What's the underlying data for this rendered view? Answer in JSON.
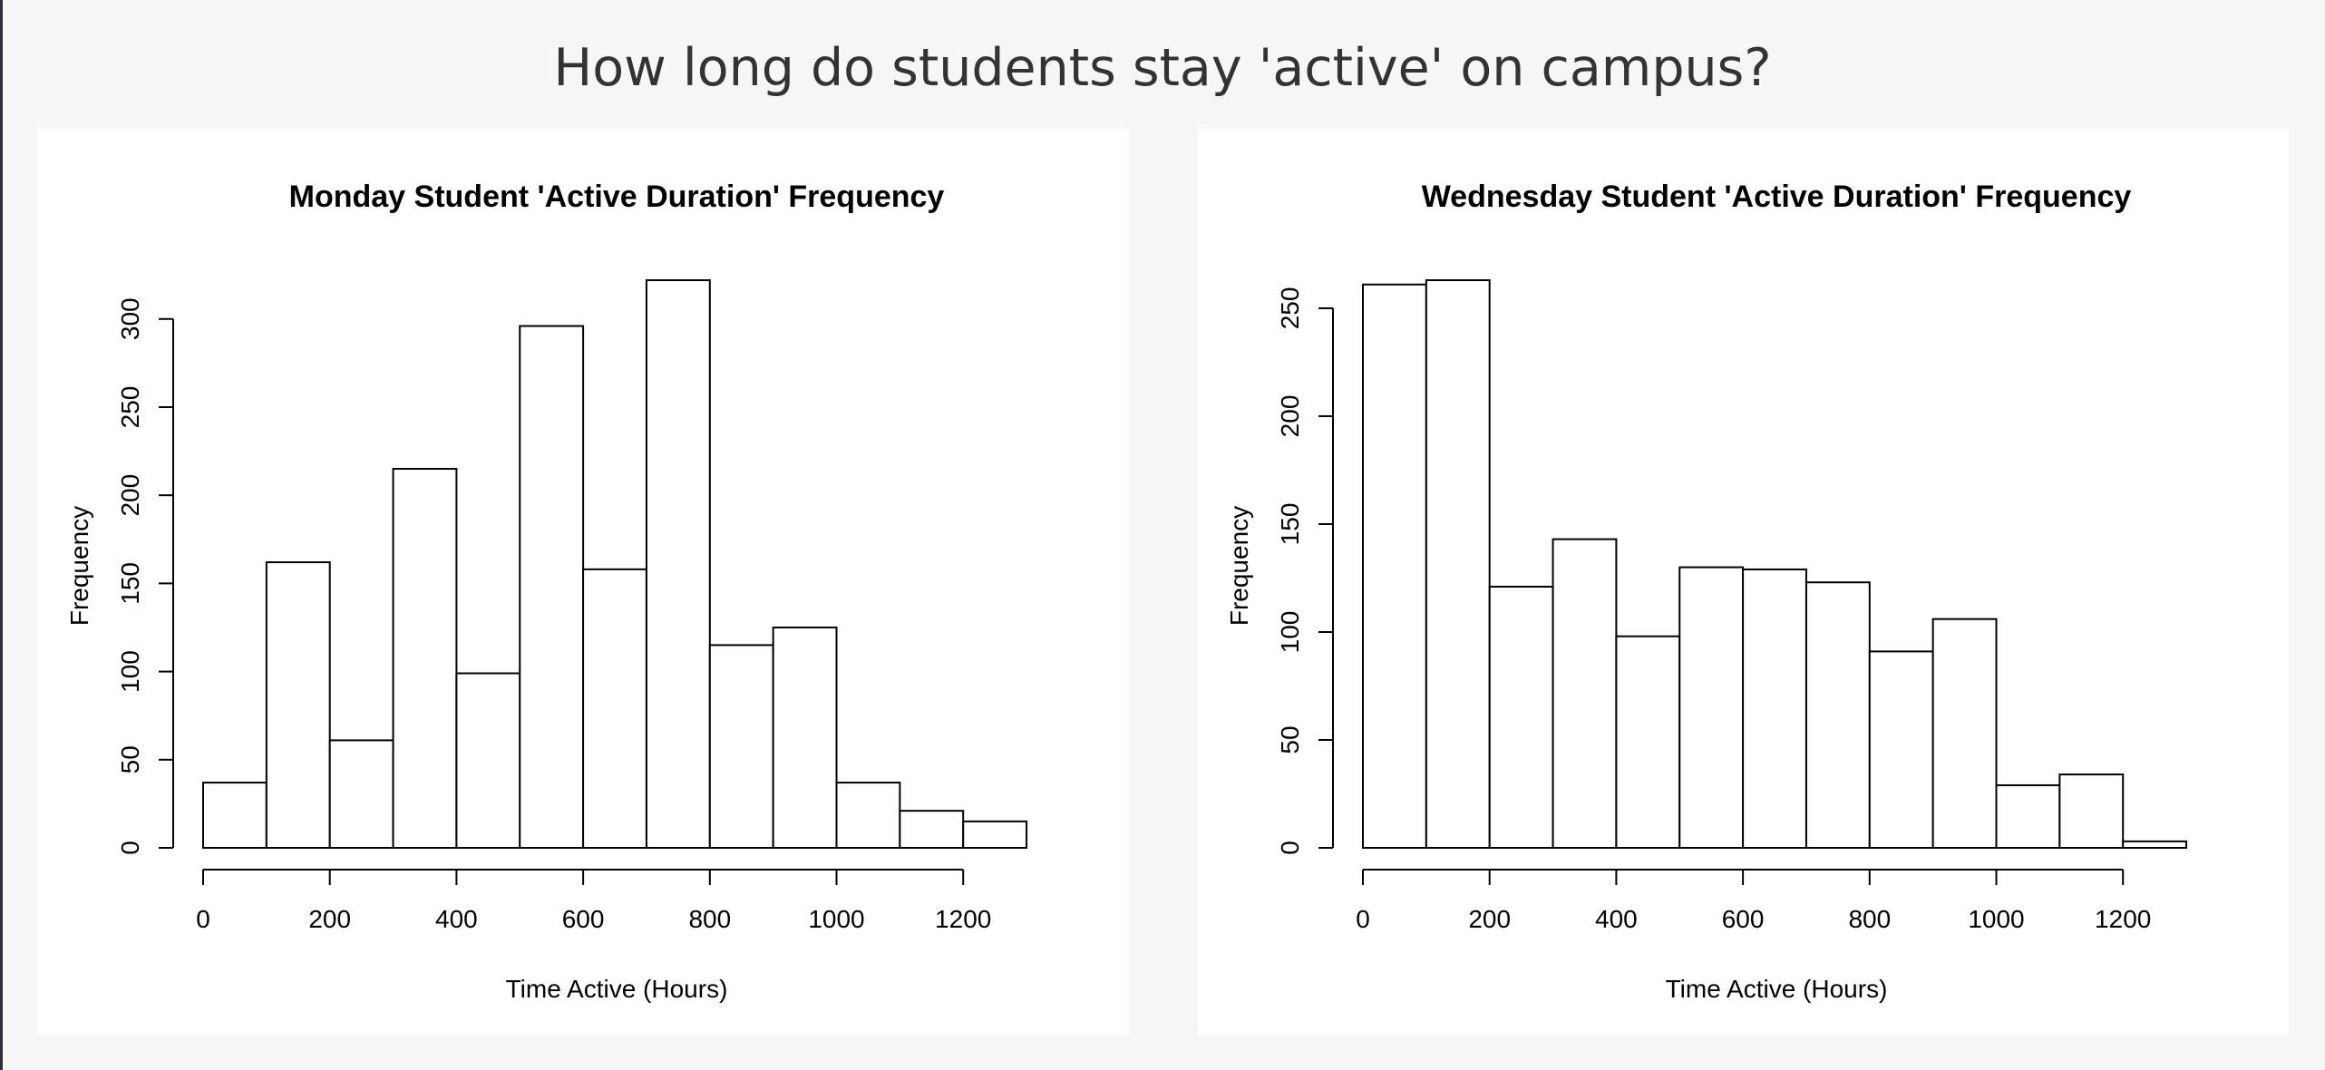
{
  "page": {
    "title": "How long do students stay 'active' on campus?"
  },
  "chart_data": [
    {
      "type": "bar",
      "title": "Monday Student 'Active Duration' Frequency",
      "xlabel": "Time Active (Hours)",
      "ylabel": "Frequency",
      "bin_width": 100,
      "bins_start": [
        0,
        100,
        200,
        300,
        400,
        500,
        600,
        700,
        800,
        900,
        1000,
        1100,
        1200
      ],
      "values": [
        37,
        162,
        61,
        215,
        99,
        296,
        158,
        322,
        115,
        125,
        37,
        21,
        15
      ],
      "xlim": [
        0,
        1300
      ],
      "ylim": [
        0,
        322
      ],
      "x_ticks": [
        0,
        200,
        400,
        600,
        800,
        1000,
        1200
      ],
      "y_ticks": [
        0,
        50,
        100,
        150,
        200,
        250,
        300
      ],
      "grid": false
    },
    {
      "type": "bar",
      "title": "Wednesday Student 'Active Duration' Frequency",
      "xlabel": "Time Active (Hours)",
      "ylabel": "Frequency",
      "bin_width": 100,
      "bins_start": [
        0,
        100,
        200,
        300,
        400,
        500,
        600,
        700,
        800,
        900,
        1000,
        1100,
        1200
      ],
      "values": [
        261,
        263,
        121,
        143,
        98,
        130,
        129,
        123,
        91,
        106,
        29,
        34,
        3
      ],
      "xlim": [
        0,
        1300
      ],
      "ylim": [
        0,
        263
      ],
      "x_ticks": [
        0,
        200,
        400,
        600,
        800,
        1000,
        1200
      ],
      "y_ticks": [
        0,
        50,
        100,
        150,
        200,
        250
      ],
      "grid": false
    }
  ]
}
